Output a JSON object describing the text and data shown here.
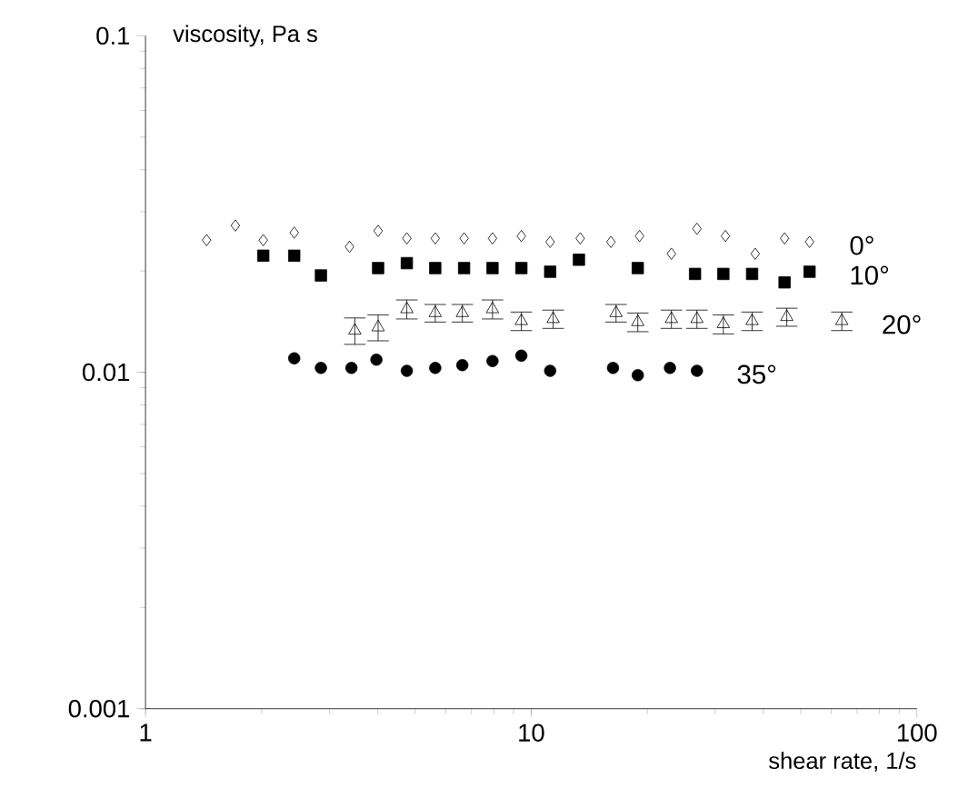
{
  "chart_data": {
    "type": "scatter",
    "xlabel": "shear rate, 1/s",
    "ylabel": "viscosity, Pa s",
    "log": "xy",
    "xlim": [
      1,
      100
    ],
    "ylim": [
      0.001,
      0.1
    ],
    "xticks": [
      1,
      10,
      100
    ],
    "yticks": [
      0.001,
      0.01,
      0.1
    ],
    "grid": false,
    "legend": false,
    "series": [
      {
        "name": "0°",
        "color": "#000000",
        "marker": "diamond",
        "x": [
          1.44,
          1.71,
          2.02,
          2.43,
          3.38,
          4.01,
          4.76,
          5.64,
          6.7,
          7.94,
          9.43,
          11.2,
          13.4,
          16.1,
          19.1,
          23.1,
          26.9,
          31.9,
          38.1,
          45.4,
          52.7
        ],
        "values": [
          0.0247,
          0.0273,
          0.0247,
          0.026,
          0.0236,
          0.0263,
          0.025,
          0.025,
          0.025,
          0.025,
          0.0254,
          0.0244,
          0.025,
          0.0244,
          0.0254,
          0.0225,
          0.0267,
          0.0254,
          0.0225,
          0.025,
          0.0244
        ]
      },
      {
        "name": "10°",
        "color": "#000000",
        "marker": "square",
        "x": [
          2.02,
          2.43,
          2.85,
          4.01,
          4.76,
          5.64,
          6.7,
          7.94,
          9.43,
          11.2,
          13.3,
          18.9,
          26.6,
          31.5,
          37.4,
          45.4,
          52.7
        ],
        "values": [
          0.0222,
          0.0222,
          0.0194,
          0.0204,
          0.0211,
          0.0204,
          0.0204,
          0.0204,
          0.0204,
          0.0199,
          0.0216,
          0.0204,
          0.0196,
          0.0196,
          0.0196,
          0.0185,
          0.0199
        ]
      },
      {
        "name": "20°",
        "color": "#000000",
        "marker": "triangle",
        "x": [
          3.49,
          4.01,
          4.76,
          5.64,
          6.63,
          7.94,
          9.43,
          11.4,
          16.6,
          18.9,
          23.1,
          26.9,
          31.5,
          37.4,
          46.0,
          63.9
        ],
        "values": [
          0.0133,
          0.0136,
          0.0154,
          0.015,
          0.015,
          0.0154,
          0.0142,
          0.0144,
          0.015,
          0.0141,
          0.0144,
          0.0144,
          0.0139,
          0.0142,
          0.0146,
          0.0142
        ],
        "errors": [
          0.0012,
          0.0012,
          0.001,
          0.0009,
          0.0009,
          0.001,
          0.0009,
          0.0009,
          0.0009,
          0.0009,
          0.0009,
          0.0009,
          0.0009,
          0.0009,
          0.0009,
          0.0009
        ]
      },
      {
        "name": "35°",
        "color": "#000000",
        "marker": "circle",
        "x": [
          2.43,
          2.85,
          3.42,
          3.97,
          4.76,
          5.64,
          6.63,
          7.94,
          9.43,
          11.2,
          16.3,
          18.9,
          22.9,
          26.9
        ],
        "values": [
          0.011,
          0.0103,
          0.0103,
          0.0109,
          0.0101,
          0.0103,
          0.0105,
          0.0108,
          0.0112,
          0.0101,
          0.0103,
          0.0098,
          0.0103,
          0.0101
        ]
      }
    ]
  }
}
